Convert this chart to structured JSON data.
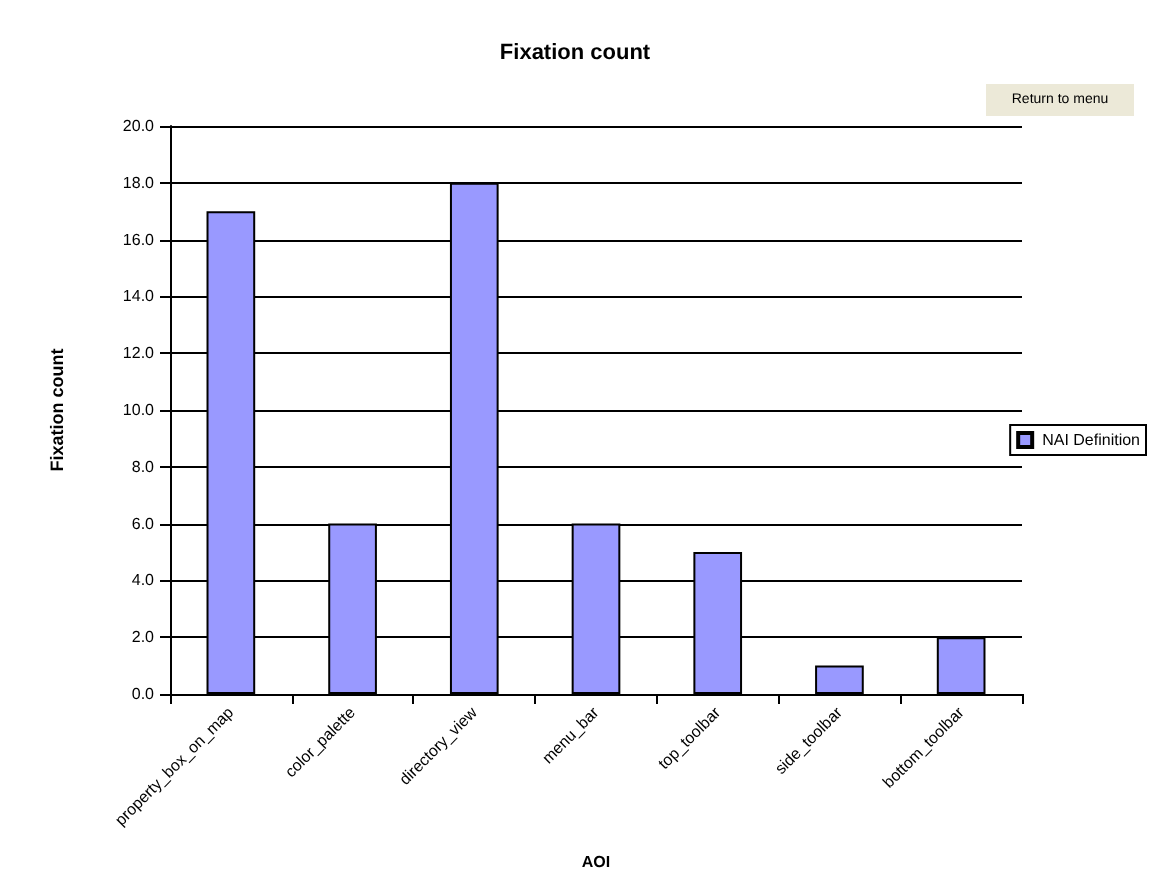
{
  "chart_data": {
    "type": "bar",
    "title": "Fixation count",
    "xlabel": "AOI",
    "ylabel": "Fixation count",
    "categories": [
      "property_box_on_map",
      "color_palette",
      "directory_view",
      "menu_bar",
      "top_toolbar",
      "side_toolbar",
      "bottom_toolbar"
    ],
    "series": [
      {
        "name": "NAI Definition",
        "color": "#9999ff",
        "values": [
          17,
          6,
          18,
          6,
          5,
          1,
          2
        ]
      }
    ],
    "ylim": [
      0,
      20
    ],
    "yticks": [
      {
        "value": 0,
        "label": "0.0"
      },
      {
        "value": 2,
        "label": "2.0"
      },
      {
        "value": 4,
        "label": "4.0"
      },
      {
        "value": 6,
        "label": "6.0"
      },
      {
        "value": 8,
        "label": "8.0"
      },
      {
        "value": 10,
        "label": "10.0"
      },
      {
        "value": 12,
        "label": "12.0"
      },
      {
        "value": 14,
        "label": "14.0"
      },
      {
        "value": 16,
        "label": "16.0"
      },
      {
        "value": 18,
        "label": "18.0"
      },
      {
        "value": 20,
        "label": "20.0"
      }
    ],
    "grid": "y",
    "legend": "right",
    "annotations": [
      "Return to menu"
    ]
  }
}
